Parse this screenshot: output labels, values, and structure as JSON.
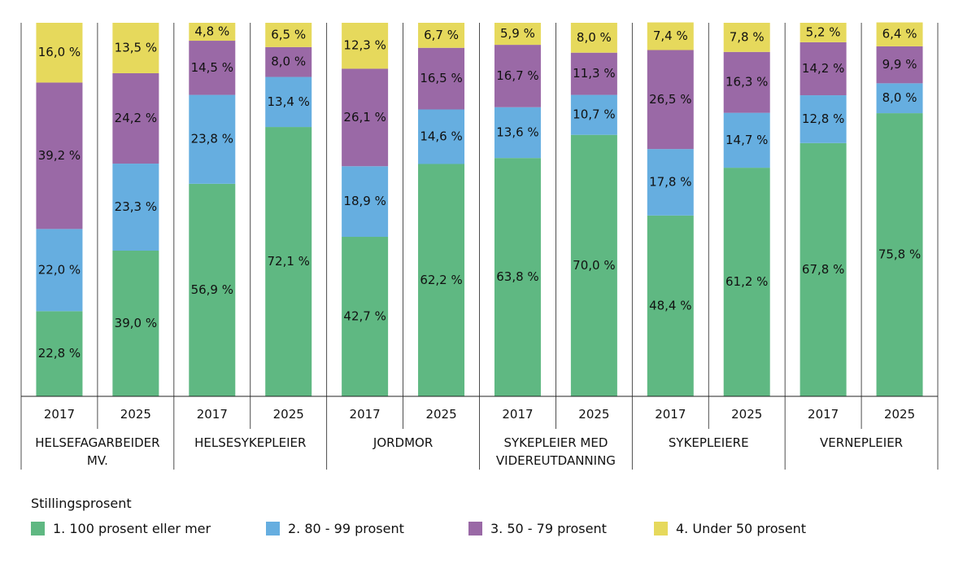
{
  "chart_data": {
    "type": "bar",
    "stacked": true,
    "groups": [
      {
        "label": [
          "HELSEFAGARBEIDER",
          "MV."
        ],
        "bars": [
          {
            "year": "2017",
            "values": [
              22.8,
              22.0,
              39.2,
              16.0
            ],
            "labels": [
              "22,8 %",
              "22,0 %",
              "39,2 %",
              "16,0 %"
            ]
          },
          {
            "year": "2025",
            "values": [
              39.0,
              23.3,
              24.2,
              13.5
            ],
            "labels": [
              "39,0 %",
              "23,3 %",
              "24,2 %",
              "13,5 %"
            ]
          }
        ]
      },
      {
        "label": [
          "HELSESYKEPLEIER"
        ],
        "bars": [
          {
            "year": "2017",
            "values": [
              56.9,
              23.8,
              14.5,
              4.8
            ],
            "labels": [
              "56,9 %",
              "23,8 %",
              "14,5 %",
              "4,8 %"
            ]
          },
          {
            "year": "2025",
            "values": [
              72.1,
              13.4,
              8.0,
              6.5
            ],
            "labels": [
              "72,1 %",
              "13,4 %",
              "8,0 %",
              "6,5 %"
            ]
          }
        ]
      },
      {
        "label": [
          "JORDMOR"
        ],
        "bars": [
          {
            "year": "2017",
            "values": [
              42.7,
              18.9,
              26.1,
              12.3
            ],
            "labels": [
              "42,7 %",
              "18,9 %",
              "26,1 %",
              "12,3 %"
            ]
          },
          {
            "year": "2025",
            "values": [
              62.2,
              14.6,
              16.5,
              6.7
            ],
            "labels": [
              "62,2 %",
              "14,6 %",
              "16,5 %",
              "6,7 %"
            ]
          }
        ]
      },
      {
        "label": [
          "SYKEPLEIER MED",
          "VIDEREUTDANNING"
        ],
        "bars": [
          {
            "year": "2017",
            "values": [
              63.8,
              13.6,
              16.7,
              5.9
            ],
            "labels": [
              "63,8 %",
              "13,6 %",
              "16,7 %",
              "5,9 %"
            ]
          },
          {
            "year": "2025",
            "values": [
              70.0,
              10.7,
              11.3,
              8.0
            ],
            "labels": [
              "70,0 %",
              "10,7 %",
              "11,3 %",
              "8,0 %"
            ]
          }
        ]
      },
      {
        "label": [
          "SYKEPLEIERE"
        ],
        "bars": [
          {
            "year": "2017",
            "values": [
              48.4,
              17.8,
              26.5,
              7.4
            ],
            "labels": [
              "48,4 %",
              "17,8 %",
              "26,5 %",
              "7,4 %"
            ]
          },
          {
            "year": "2025",
            "values": [
              61.2,
              14.7,
              16.3,
              7.8
            ],
            "labels": [
              "61,2 %",
              "14,7 %",
              "16,3 %",
              "7,8 %"
            ]
          }
        ]
      },
      {
        "label": [
          "VERNEPLEIER"
        ],
        "bars": [
          {
            "year": "2017",
            "values": [
              67.8,
              12.8,
              14.2,
              5.2
            ],
            "labels": [
              "67,8 %",
              "12,8 %",
              "14,2 %",
              "5,2 %"
            ]
          },
          {
            "year": "2025",
            "values": [
              75.8,
              8.0,
              9.9,
              6.4
            ],
            "labels": [
              "75,8 %",
              "8,0 %",
              "9,9 %",
              "6,4 %"
            ]
          }
        ]
      }
    ],
    "series": [
      {
        "name": "1. 100 prosent eller mer",
        "color": "#5fb882"
      },
      {
        "name": "2. 80 - 99 prosent",
        "color": "#66aee0"
      },
      {
        "name": "3. 50 - 79 prosent",
        "color": "#9a69a6"
      },
      {
        "name": "4. Under 50 prosent",
        "color": "#e6d95c"
      }
    ],
    "ylim": [
      0,
      100
    ],
    "legend_title": "Stillingsprosent",
    "legend_position": "bottom",
    "grid": false
  }
}
